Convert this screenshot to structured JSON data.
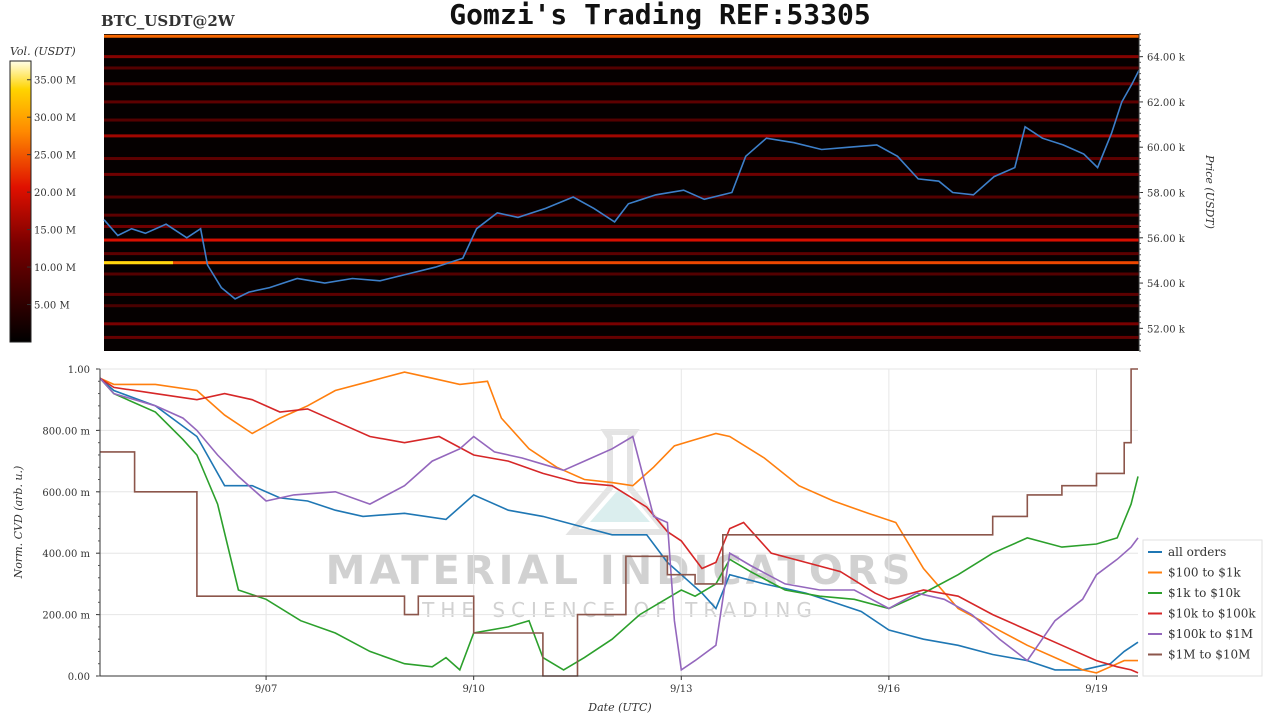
{
  "header": {
    "ticker": "BTC_USDT@2W",
    "title": "Gomzi's Trading REF:53305"
  },
  "colorbar": {
    "label": "Vol. (USDT)",
    "ticks": [
      {
        "v": 5,
        "text": "5.00 M"
      },
      {
        "v": 10,
        "text": "10.00 M"
      },
      {
        "v": 15,
        "text": "15.00 M"
      },
      {
        "v": 20,
        "text": "20.00 M"
      },
      {
        "v": 25,
        "text": "25.00 M"
      },
      {
        "v": 30,
        "text": "30.00 M"
      },
      {
        "v": 35,
        "text": "35.00 M"
      }
    ],
    "range": [
      0,
      37.5
    ]
  },
  "watermark": {
    "brand": "MATERIAL INDICATORS",
    "tagline": "THE SCIENCE OF TRADING"
  },
  "colors": {
    "price_line": "#3d7fc9",
    "grid": "#e6e6e6",
    "heatmap_bg": "#050000"
  },
  "chart_data": [
    {
      "type": "heatmap",
      "ylabel": "Price (USDT)",
      "ylim": [
        51.0,
        65.0
      ],
      "y_unit": "k USDT",
      "x_range_days": [
        4.6,
        19.6
      ],
      "yticks": [
        {
          "v": 52,
          "text": "52.00 k"
        },
        {
          "v": 54,
          "text": "54.00 k"
        },
        {
          "v": 56,
          "text": "56.00 k"
        },
        {
          "v": 58,
          "text": "58.00 k"
        },
        {
          "v": 60,
          "text": "60.00 k"
        },
        {
          "v": 62,
          "text": "62.00 k"
        },
        {
          "v": 64,
          "text": "64.00 k"
        }
      ],
      "liquidity_levels": [
        {
          "price": 64.9,
          "vol": 26,
          "from": 4.6,
          "to": 19.6
        },
        {
          "price": 64.0,
          "vol": 14,
          "from": 4.6,
          "to": 19.6
        },
        {
          "price": 63.5,
          "vol": 9,
          "from": 4.6,
          "to": 19.6
        },
        {
          "price": 62.8,
          "vol": 11,
          "from": 4.6,
          "to": 19.6
        },
        {
          "price": 62.0,
          "vol": 10,
          "from": 4.6,
          "to": 19.6
        },
        {
          "price": 61.2,
          "vol": 9,
          "from": 4.6,
          "to": 19.6
        },
        {
          "price": 60.5,
          "vol": 16,
          "from": 4.6,
          "to": 19.6
        },
        {
          "price": 59.5,
          "vol": 10,
          "from": 4.6,
          "to": 19.6
        },
        {
          "price": 58.8,
          "vol": 12,
          "from": 4.6,
          "to": 19.6
        },
        {
          "price": 57.8,
          "vol": 9,
          "from": 4.6,
          "to": 19.6
        },
        {
          "price": 57.0,
          "vol": 10,
          "from": 4.6,
          "to": 19.6
        },
        {
          "price": 56.5,
          "vol": 12,
          "from": 4.6,
          "to": 19.6
        },
        {
          "price": 55.9,
          "vol": 20,
          "from": 4.6,
          "to": 19.6
        },
        {
          "price": 55.3,
          "vol": 10,
          "from": 4.6,
          "to": 19.6
        },
        {
          "price": 54.9,
          "vol": 24,
          "from": 4.6,
          "to": 19.6
        },
        {
          "price": 54.9,
          "vol": 34,
          "from": 4.6,
          "to": 5.6
        },
        {
          "price": 54.4,
          "vol": 9,
          "from": 4.6,
          "to": 19.6
        },
        {
          "price": 53.5,
          "vol": 10,
          "from": 4.6,
          "to": 19.6
        },
        {
          "price": 53.0,
          "vol": 8,
          "from": 4.6,
          "to": 19.6
        },
        {
          "price": 52.2,
          "vol": 13,
          "from": 4.6,
          "to": 19.6
        },
        {
          "price": 51.6,
          "vol": 11,
          "from": 4.6,
          "to": 19.6
        }
      ],
      "price_series": {
        "name": "price",
        "points": [
          [
            4.6,
            56.8
          ],
          [
            4.8,
            56.1
          ],
          [
            5.0,
            56.4
          ],
          [
            5.2,
            56.2
          ],
          [
            5.5,
            56.6
          ],
          [
            5.8,
            56.0
          ],
          [
            6.0,
            56.4
          ],
          [
            6.1,
            54.8
          ],
          [
            6.3,
            53.8
          ],
          [
            6.5,
            53.3
          ],
          [
            6.7,
            53.6
          ],
          [
            7.0,
            53.8
          ],
          [
            7.4,
            54.2
          ],
          [
            7.8,
            54.0
          ],
          [
            8.2,
            54.2
          ],
          [
            8.6,
            54.1
          ],
          [
            9.0,
            54.4
          ],
          [
            9.4,
            54.7
          ],
          [
            9.8,
            55.1
          ],
          [
            10.0,
            56.4
          ],
          [
            10.3,
            57.1
          ],
          [
            10.6,
            56.9
          ],
          [
            11.0,
            57.3
          ],
          [
            11.4,
            57.8
          ],
          [
            11.7,
            57.3
          ],
          [
            12.0,
            56.7
          ],
          [
            12.2,
            57.5
          ],
          [
            12.6,
            57.9
          ],
          [
            13.0,
            58.1
          ],
          [
            13.3,
            57.7
          ],
          [
            13.7,
            58.0
          ],
          [
            13.9,
            59.6
          ],
          [
            14.2,
            60.4
          ],
          [
            14.6,
            60.2
          ],
          [
            15.0,
            59.9
          ],
          [
            15.4,
            60.0
          ],
          [
            15.8,
            60.1
          ],
          [
            16.1,
            59.6
          ],
          [
            16.4,
            58.6
          ],
          [
            16.7,
            58.5
          ],
          [
            16.9,
            58.0
          ],
          [
            17.2,
            57.9
          ],
          [
            17.5,
            58.7
          ],
          [
            17.8,
            59.1
          ],
          [
            17.95,
            60.9
          ],
          [
            18.2,
            60.4
          ],
          [
            18.5,
            60.1
          ],
          [
            18.8,
            59.7
          ],
          [
            19.0,
            59.1
          ],
          [
            19.2,
            60.6
          ],
          [
            19.35,
            62.0
          ],
          [
            19.5,
            62.8
          ],
          [
            19.6,
            63.4
          ]
        ]
      }
    },
    {
      "type": "line",
      "xlabel": "Date (UTC)",
      "ylabel": "Norm. CVD (arb. u.)",
      "xlim": [
        4.6,
        19.6
      ],
      "ylim": [
        0,
        1
      ],
      "xticks": [
        {
          "v": 7,
          "text": "9/07"
        },
        {
          "v": 10,
          "text": "9/10"
        },
        {
          "v": 13,
          "text": "9/13"
        },
        {
          "v": 16,
          "text": "9/16"
        },
        {
          "v": 19,
          "text": "9/19"
        }
      ],
      "yticks": [
        {
          "v": 0,
          "text": "0.00"
        },
        {
          "v": 0.2,
          "text": "200.00 m"
        },
        {
          "v": 0.4,
          "text": "400.00 m"
        },
        {
          "v": 0.6,
          "text": "600.00 m"
        },
        {
          "v": 0.8,
          "text": "800.00 m"
        },
        {
          "v": 1.0,
          "text": "1.00"
        }
      ],
      "legend_position": "right",
      "series": [
        {
          "name": "all orders",
          "color": "#1f77b4",
          "step": false,
          "x": [
            4.6,
            4.8,
            5.4,
            6.0,
            6.4,
            6.8,
            7.2,
            7.6,
            8.0,
            8.4,
            9.0,
            9.6,
            10.0,
            10.5,
            11.0,
            11.5,
            12.0,
            12.5,
            12.8,
            13.0,
            13.3,
            13.5,
            13.7,
            14.2,
            14.8,
            15.2,
            15.6,
            16.0,
            16.5,
            17.0,
            17.5,
            18.0,
            18.4,
            18.8,
            19.0,
            19.2,
            19.4,
            19.6
          ],
          "y": [
            0.97,
            0.93,
            0.88,
            0.78,
            0.62,
            0.62,
            0.58,
            0.57,
            0.54,
            0.52,
            0.53,
            0.51,
            0.59,
            0.54,
            0.52,
            0.49,
            0.46,
            0.46,
            0.37,
            0.33,
            0.27,
            0.22,
            0.33,
            0.3,
            0.27,
            0.24,
            0.21,
            0.15,
            0.12,
            0.1,
            0.07,
            0.05,
            0.02,
            0.02,
            0.03,
            0.04,
            0.08,
            0.11
          ]
        },
        {
          "name": "$100 to $1k",
          "color": "#ff7f0e",
          "step": false,
          "x": [
            4.6,
            4.8,
            5.4,
            6.0,
            6.4,
            6.8,
            7.2,
            7.6,
            8.0,
            8.5,
            9.0,
            9.4,
            9.8,
            10.2,
            10.4,
            10.8,
            11.2,
            11.6,
            12.0,
            12.3,
            12.6,
            12.9,
            13.2,
            13.5,
            13.7,
            14.2,
            14.7,
            15.2,
            15.7,
            16.1,
            16.5,
            17.0,
            17.5,
            18.0,
            18.5,
            18.8,
            19.0,
            19.2,
            19.4,
            19.6
          ],
          "y": [
            0.97,
            0.95,
            0.95,
            0.93,
            0.85,
            0.79,
            0.84,
            0.88,
            0.93,
            0.96,
            0.99,
            0.97,
            0.95,
            0.96,
            0.84,
            0.74,
            0.68,
            0.64,
            0.63,
            0.62,
            0.68,
            0.75,
            0.77,
            0.79,
            0.78,
            0.71,
            0.62,
            0.57,
            0.53,
            0.5,
            0.35,
            0.22,
            0.16,
            0.1,
            0.05,
            0.02,
            0.01,
            0.03,
            0.05,
            0.05
          ]
        },
        {
          "name": "$1k to $10k",
          "color": "#2ca02c",
          "step": false,
          "x": [
            4.6,
            4.8,
            5.4,
            5.8,
            6.0,
            6.3,
            6.6,
            7.0,
            7.5,
            8.0,
            8.5,
            9.0,
            9.4,
            9.6,
            9.8,
            10.0,
            10.5,
            10.8,
            11.0,
            11.3,
            11.6,
            12.0,
            12.4,
            12.7,
            13.0,
            13.2,
            13.5,
            13.7,
            14.0,
            14.5,
            15.0,
            15.5,
            16.0,
            16.5,
            17.0,
            17.5,
            18.0,
            18.5,
            19.0,
            19.3,
            19.5,
            19.6
          ],
          "y": [
            0.97,
            0.92,
            0.86,
            0.77,
            0.72,
            0.56,
            0.28,
            0.25,
            0.18,
            0.14,
            0.08,
            0.04,
            0.03,
            0.06,
            0.02,
            0.14,
            0.16,
            0.18,
            0.06,
            0.02,
            0.06,
            0.12,
            0.2,
            0.24,
            0.28,
            0.26,
            0.3,
            0.38,
            0.34,
            0.28,
            0.26,
            0.25,
            0.22,
            0.27,
            0.33,
            0.4,
            0.45,
            0.42,
            0.43,
            0.45,
            0.56,
            0.65
          ]
        },
        {
          "name": "$10k to $100k",
          "color": "#d62728",
          "step": false,
          "x": [
            4.6,
            4.8,
            5.4,
            6.0,
            6.4,
            6.8,
            7.2,
            7.6,
            8.0,
            8.5,
            9.0,
            9.5,
            10.0,
            10.5,
            11.0,
            11.5,
            12.0,
            12.5,
            12.8,
            13.0,
            13.3,
            13.5,
            13.7,
            13.9,
            14.3,
            14.8,
            15.3,
            15.8,
            16.0,
            16.5,
            17.0,
            17.5,
            18.0,
            18.5,
            19.0,
            19.3,
            19.5,
            19.6
          ],
          "y": [
            0.97,
            0.94,
            0.92,
            0.9,
            0.92,
            0.9,
            0.86,
            0.87,
            0.83,
            0.78,
            0.76,
            0.78,
            0.72,
            0.7,
            0.66,
            0.63,
            0.62,
            0.55,
            0.47,
            0.44,
            0.35,
            0.37,
            0.48,
            0.5,
            0.4,
            0.37,
            0.34,
            0.27,
            0.25,
            0.28,
            0.26,
            0.2,
            0.15,
            0.1,
            0.05,
            0.03,
            0.02,
            0.01
          ]
        },
        {
          "name": "$100k to $1M",
          "color": "#9467bd",
          "step": false,
          "x": [
            4.6,
            4.8,
            5.4,
            5.8,
            6.0,
            6.3,
            6.6,
            7.0,
            7.4,
            8.0,
            8.5,
            9.0,
            9.4,
            9.8,
            10.0,
            10.3,
            10.7,
            11.0,
            11.3,
            11.6,
            12.0,
            12.3,
            12.6,
            12.8,
            12.9,
            13.0,
            13.2,
            13.5,
            13.7,
            14.0,
            14.5,
            15.0,
            15.5,
            16.0,
            16.4,
            16.8,
            17.2,
            17.6,
            18.0,
            18.4,
            18.8,
            19.0,
            19.3,
            19.5,
            19.6
          ],
          "y": [
            0.97,
            0.92,
            0.88,
            0.84,
            0.8,
            0.72,
            0.65,
            0.57,
            0.59,
            0.6,
            0.56,
            0.62,
            0.7,
            0.74,
            0.78,
            0.73,
            0.71,
            0.69,
            0.67,
            0.7,
            0.74,
            0.78,
            0.52,
            0.5,
            0.18,
            0.02,
            0.05,
            0.1,
            0.4,
            0.36,
            0.3,
            0.28,
            0.28,
            0.22,
            0.27,
            0.25,
            0.2,
            0.12,
            0.05,
            0.18,
            0.25,
            0.33,
            0.38,
            0.42,
            0.45
          ]
        },
        {
          "name": "$1M to $10M",
          "color": "#8c564b",
          "step": true,
          "x": [
            4.6,
            5.1,
            6.0,
            6.7,
            8.0,
            9.0,
            9.2,
            10.0,
            10.7,
            11.0,
            11.5,
            12.2,
            12.8,
            13.2,
            13.6,
            14.8,
            16.0,
            17.0,
            17.5,
            18.0,
            18.5,
            19.0,
            19.4,
            19.5
          ],
          "y": [
            0.73,
            0.6,
            0.26,
            0.26,
            0.26,
            0.2,
            0.26,
            0.14,
            0.14,
            0.0,
            0.2,
            0.39,
            0.33,
            0.3,
            0.46,
            0.46,
            0.46,
            0.46,
            0.52,
            0.59,
            0.62,
            0.66,
            0.76,
            1.0
          ]
        }
      ]
    }
  ]
}
